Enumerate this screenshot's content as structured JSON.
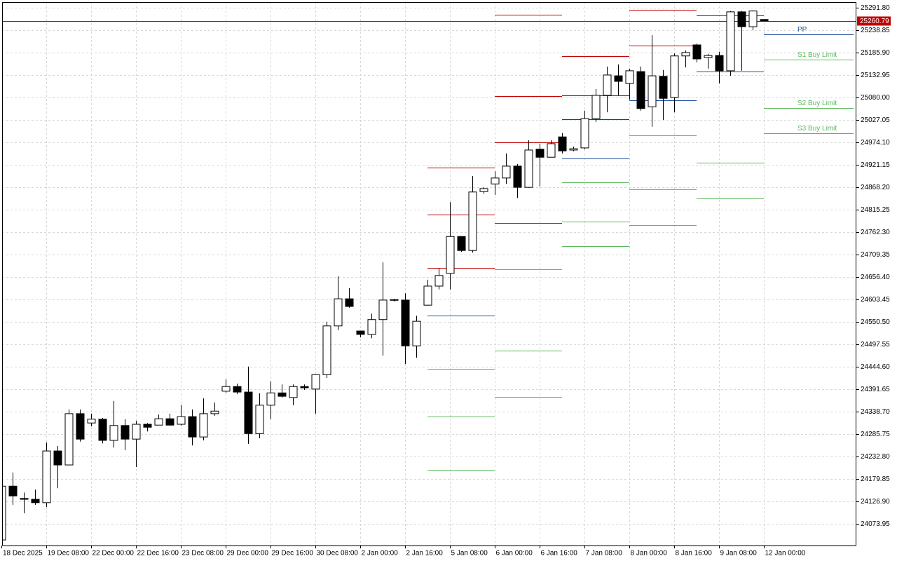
{
  "chart_data": {
    "type": "candlestick",
    "categories": [
      "18 Dec 2025",
      null,
      null,
      null,
      "19 Dec 08:00",
      null,
      null,
      null,
      "22 Dec 00:00",
      null,
      null,
      null,
      "22 Dec 16:00",
      null,
      null,
      null,
      "23 Dec 08:00",
      null,
      null,
      null,
      "29 Dec 00:00",
      null,
      null,
      null,
      "29 Dec 16:00",
      null,
      null,
      null,
      "30 Dec 08:00",
      null,
      null,
      null,
      "2 Jan 00:00",
      null,
      null,
      null,
      "2 Jan 16:00",
      null,
      null,
      null,
      "5 Jan 08:00",
      null,
      null,
      null,
      "6 Jan 00:00",
      null,
      null,
      null,
      "6 Jan 16:00",
      null,
      null,
      null,
      "7 Jan 08:00",
      null,
      null,
      null,
      "8 Jan 00:00",
      null,
      null,
      null,
      "8 Jan 16:00",
      null,
      null,
      null,
      "9 Jan 08:00",
      null,
      null,
      null,
      "12 Jan 00:00"
    ],
    "open": [
      24036,
      24163,
      24134,
      24132,
      24124,
      24246,
      24213,
      24334,
      24312,
      24321,
      24271,
      24306,
      24274,
      24309,
      24307,
      24322,
      24309,
      24327,
      24279,
      24334,
      24387,
      24398,
      24385,
      24287,
      24354,
      24383,
      24372,
      24398,
      24392,
      24426,
      24541,
      24605,
      24529,
      24521,
      24556,
      24603,
      24602,
      24494,
      24590,
      24635,
      24665,
      24752,
      24719,
      24858,
      24876,
      24890,
      24918,
      24868,
      24958,
      24939,
      24987,
      24956,
      24961,
      25030,
      25085,
      25131,
      25113,
      25141,
      25058,
      25130,
      25080,
      25178,
      25204,
      25174,
      25179,
      25143,
      25282,
      25247,
      25264
    ],
    "high": [
      24168,
      24195,
      24148,
      24155,
      24266,
      24258,
      24344,
      24344,
      24334,
      24324,
      24364,
      24321,
      24317,
      24312,
      24332,
      24334,
      24355,
      24344,
      24370,
      24360,
      24415,
      24405,
      24445,
      24382,
      24410,
      24403,
      24403,
      24403,
      24426,
      24551,
      24658,
      24630,
      24529,
      24570,
      24691,
      24605,
      24618,
      24565,
      24650,
      24678,
      24833,
      24752,
      24895,
      24868,
      24906,
      24948,
      24923,
      24979,
      24971,
      24979,
      24996,
      24964,
      25049,
      25100,
      25153,
      25158,
      25148,
      25153,
      25227,
      25145,
      25184,
      25191,
      25207,
      25183,
      25188,
      25284,
      25284,
      25285,
      25264
    ],
    "low": [
      24023,
      24119,
      24099,
      24119,
      24114,
      24158,
      24213,
      24268,
      24304,
      24264,
      24254,
      24248,
      24208,
      24292,
      24307,
      24306,
      24306,
      24259,
      24271,
      24329,
      24383,
      24380,
      24263,
      24276,
      24321,
      24372,
      24354,
      24390,
      24334,
      24418,
      24531,
      24584,
      24514,
      24512,
      24471,
      24599,
      24451,
      24466,
      24589,
      24627,
      24627,
      24716,
      24714,
      24853,
      24850,
      24876,
      24843,
      24867,
      24870,
      24939,
      24948,
      24953,
      24958,
      25022,
      25045,
      25085,
      25075,
      25049,
      25011,
      25027,
      25045,
      25151,
      25163,
      25148,
      25113,
      25131,
      25143,
      25239,
      25259
    ],
    "close": [
      24163,
      24140,
      24132,
      24124,
      24246,
      24213,
      24334,
      24274,
      24321,
      24271,
      24306,
      24274,
      24309,
      24302,
      24322,
      24307,
      24327,
      24279,
      24334,
      24340,
      24398,
      24385,
      24287,
      24354,
      24383,
      24375,
      24398,
      24395,
      24426,
      24541,
      24605,
      24587,
      24521,
      24556,
      24602,
      24602,
      24494,
      24552,
      24635,
      24660,
      24752,
      24719,
      24857,
      24865,
      24890,
      24918,
      24868,
      24956,
      24939,
      24971,
      24954,
      24959,
      25030,
      25085,
      25133,
      25118,
      25143,
      25054,
      25131,
      25078,
      25178,
      25186,
      25171,
      25179,
      25143,
      25282,
      25247,
      25284,
      25260.79
    ],
    "up_color": "#ffffff",
    "down_color": "#000000",
    "ylim": [
      24022.8,
      25305.0
    ],
    "yticks": [
      {
        "value": 25291.8,
        "label": "25291.80"
      },
      25238.85,
      {
        "value": 25185.9,
        "label": "25185.90"
      },
      25132.95,
      {
        "value": 25080,
        "label": "25080.00"
      },
      25027.05,
      {
        "value": 24974.1,
        "label": "24974.10"
      },
      24921.15,
      {
        "value": 24868.2,
        "label": "24868.20"
      },
      24815.25,
      {
        "value": 24762.3,
        "label": "24762.30"
      },
      24709.35,
      {
        "value": 24656.4,
        "label": "24656.40"
      },
      24603.45,
      {
        "value": 24550.5,
        "label": "24550.50"
      },
      24497.55,
      {
        "value": 24444.6,
        "label": "24444.60"
      },
      24391.65,
      {
        "value": 24338.7,
        "label": "24338.70"
      },
      24285.75,
      {
        "value": 24232.8,
        "label": "24232.80"
      },
      24179.85,
      {
        "value": 24126.9,
        "label": "24126.90"
      },
      24073.95
    ],
    "grid": true,
    "current_price": 25260.79,
    "current_price_color": "#c00000",
    "levels": [
      {
        "x": [
          38,
          44
        ],
        "lines": [
          {
            "value": 24915,
            "color": "#c00000"
          },
          {
            "value": 24804,
            "color": "#c00000"
          },
          {
            "value": 24678,
            "color": "#c00000"
          },
          {
            "value": 24565,
            "color": "#1f4e9e"
          },
          {
            "value": 24440,
            "color": "#5cb85c"
          },
          {
            "value": 24327,
            "color": "#5cb85c"
          },
          {
            "value": 24201,
            "color": "#5cb85c"
          }
        ]
      },
      {
        "x": [
          44,
          50
        ],
        "lines": [
          {
            "value": 25275,
            "color": "#c00000"
          },
          {
            "value": 25083,
            "color": "#c00000"
          },
          {
            "value": 24974,
            "color": "#c00000"
          },
          {
            "value": 24784,
            "color": "#1f4e9e"
          },
          {
            "value": 24675,
            "color": "#5cb85c"
          },
          {
            "value": 24483,
            "color": "#5cb85c"
          },
          {
            "value": 24374,
            "color": "#5cb85c"
          }
        ]
      },
      {
        "x": [
          50,
          56
        ],
        "lines": [
          {
            "value": 25178,
            "color": "#c00000"
          },
          {
            "value": 25085,
            "color": "#c00000"
          },
          {
            "value": 25029,
            "color": "#c00000"
          },
          {
            "value": 24936,
            "color": "#1f4e9e"
          },
          {
            "value": 24880,
            "color": "#5cb85c"
          },
          {
            "value": 24787,
            "color": "#5cb85c"
          },
          {
            "value": 24729,
            "color": "#5cb85c"
          }
        ]
      },
      {
        "x": [
          56,
          62
        ],
        "lines": [
          {
            "value": 25287,
            "color": "#c00000"
          },
          {
            "value": 25202,
            "color": "#c00000"
          },
          {
            "value": 25073,
            "color": "#1f4e9e"
          },
          {
            "value": 24991,
            "color": "#5cb85c"
          },
          {
            "value": 24863,
            "color": "#5cb85c"
          },
          {
            "value": 24779,
            "color": "#5cb85c"
          }
        ]
      },
      {
        "x": [
          62,
          68
        ],
        "lines": [
          {
            "value": 25274,
            "color": "#c00000"
          },
          {
            "value": 25141,
            "color": "#1f4e9e"
          },
          {
            "value": 24926,
            "color": "#5cb85c"
          },
          {
            "value": 24842,
            "color": "#5cb85c"
          }
        ]
      },
      {
        "x": [
          68,
          76
        ],
        "lines": [
          {
            "value": 25229,
            "color": "#1f4e9e",
            "label": "PP"
          },
          {
            "value": 25169,
            "color": "#5cb85c",
            "label": "S1 Buy Limit"
          },
          {
            "value": 25055,
            "color": "#5cb85c",
            "label": "S2 Buy Limit"
          },
          {
            "value": 24996,
            "color": "#5cb85c",
            "label": "S3 Buy Limit"
          }
        ]
      }
    ]
  }
}
